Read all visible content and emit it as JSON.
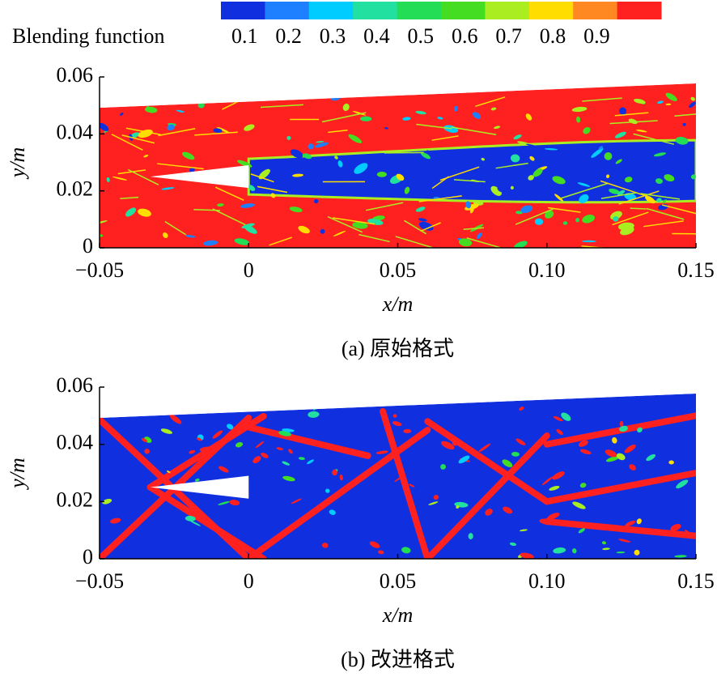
{
  "colorbar": {
    "label": "Blending function",
    "ticks": [
      0.1,
      0.2,
      0.3,
      0.4,
      0.5,
      0.6,
      0.7,
      0.8,
      0.9
    ],
    "colors": [
      "#1030e0",
      "#1e80ff",
      "#00ccff",
      "#22e0a0",
      "#22dd55",
      "#44dd22",
      "#aaee22",
      "#ffdd00",
      "#ff8822",
      "#ff2020"
    ]
  },
  "chart_data": [
    {
      "type": "contour",
      "caption": "(a) 原始格式",
      "xlabel": "x/m",
      "ylabel": "y/m",
      "xlim": [
        -0.05,
        0.15
      ],
      "ylim": [
        0,
        0.06
      ],
      "xticks": [
        {
          "value": -0.05,
          "label": "−0.05"
        },
        0,
        0.05,
        {
          "value": 0.1,
          "label": "0.10"
        },
        0.15
      ],
      "yticks": [
        0,
        0.02,
        0.04,
        0.06
      ],
      "background": "#ff2020",
      "feature_color": "#1030e0"
    },
    {
      "type": "contour",
      "caption": "(b) 改进格式",
      "xlabel": "x/m",
      "ylabel": "y/m",
      "xlim": [
        -0.05,
        0.15
      ],
      "ylim": [
        0,
        0.06
      ],
      "xticks": [
        {
          "value": -0.05,
          "label": "−0.05"
        },
        0,
        0.05,
        {
          "value": 0.1,
          "label": "0.10"
        },
        0.15
      ],
      "yticks": [
        0,
        0.02,
        0.04,
        0.06
      ],
      "background": "#1030e0",
      "feature_color": "#ff2020"
    }
  ]
}
